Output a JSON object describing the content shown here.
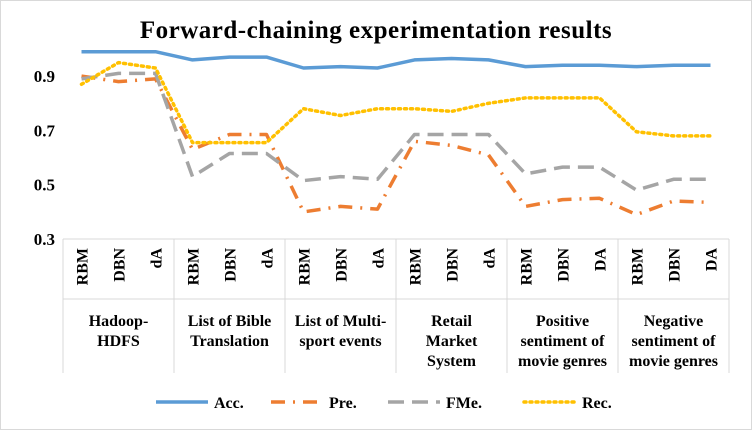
{
  "chart_data": {
    "type": "line",
    "title": "Forward-chaining experimentation results",
    "xlabel": "",
    "ylabel": "",
    "ylim": [
      0.3,
      1.0
    ],
    "yticks": [
      "0.9",
      "0.7",
      "0.5",
      "0.3"
    ],
    "ytick_values": [
      0.9,
      0.7,
      0.5,
      0.3
    ],
    "grid": false,
    "legend_position": "bottom",
    "groups": [
      {
        "label_lines": [
          "Hadoop-",
          "HDFS"
        ],
        "categories": [
          "RBM",
          "DBN",
          "dA"
        ]
      },
      {
        "label_lines": [
          "List of Bible",
          "Translation"
        ],
        "categories": [
          "RBM",
          "DBN",
          "dA"
        ]
      },
      {
        "label_lines": [
          "List of Multi-",
          "sport events"
        ],
        "categories": [
          "RBM",
          "DBN",
          "dA"
        ]
      },
      {
        "label_lines": [
          "Retail",
          "Market",
          "System"
        ],
        "categories": [
          "RBM",
          "DBN",
          "dA"
        ]
      },
      {
        "label_lines": [
          "Positive",
          "sentiment of",
          "movie genres"
        ],
        "categories": [
          "RBM",
          "DBN",
          "DA"
        ]
      },
      {
        "label_lines": [
          "Negative",
          "sentiment of",
          "movie genres"
        ],
        "categories": [
          "RBM",
          "DBN",
          "DA"
        ]
      }
    ],
    "series": [
      {
        "name": "Acc.",
        "color": "#5b9bd5",
        "dash": "solid",
        "values": [
          0.99,
          0.99,
          0.99,
          0.96,
          0.97,
          0.97,
          0.93,
          0.935,
          0.93,
          0.96,
          0.965,
          0.96,
          0.935,
          0.94,
          0.94,
          0.935,
          0.94,
          0.94
        ]
      },
      {
        "name": "Pre.",
        "color": "#ed7d31",
        "dash": "long-dash-dot",
        "values": [
          0.9,
          0.88,
          0.89,
          0.63,
          0.685,
          0.685,
          0.4,
          0.42,
          0.41,
          0.66,
          0.645,
          0.61,
          0.42,
          0.445,
          0.45,
          0.39,
          0.44,
          0.435
        ]
      },
      {
        "name": "FMe.",
        "color": "#a5a5a5",
        "dash": "long-dash",
        "values": [
          0.89,
          0.91,
          0.91,
          0.53,
          0.615,
          0.615,
          0.515,
          0.53,
          0.52,
          0.685,
          0.685,
          0.685,
          0.54,
          0.565,
          0.565,
          0.48,
          0.52,
          0.52
        ]
      },
      {
        "name": "Rec.",
        "color": "#ffc000",
        "dash": "dot",
        "values": [
          0.87,
          0.95,
          0.93,
          0.655,
          0.655,
          0.655,
          0.78,
          0.755,
          0.78,
          0.78,
          0.77,
          0.8,
          0.82,
          0.82,
          0.82,
          0.695,
          0.68,
          0.68
        ]
      }
    ]
  }
}
